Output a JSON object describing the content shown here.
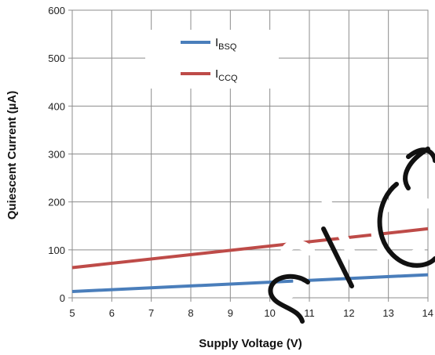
{
  "chart_data": {
    "type": "line",
    "title": "",
    "xlabel": "Supply Voltage (V)",
    "ylabel": "Quiescent Current (µA)",
    "xlim": [
      5,
      14
    ],
    "ylim": [
      0,
      600
    ],
    "x_ticks": [
      "5",
      "6",
      "7",
      "8",
      "9",
      "10",
      "11",
      "12",
      "13",
      "14"
    ],
    "y_ticks": [
      "0",
      "100",
      "200",
      "300",
      "400",
      "500",
      "600"
    ],
    "grid": true,
    "legend_position": "top-center",
    "series": [
      {
        "name_main": "I",
        "name_sub": "BSQ",
        "color": "#4a7ebb",
        "x": [
          5,
          14
        ],
        "y": [
          13,
          48
        ]
      },
      {
        "name_main": "I",
        "name_sub": "CCQ",
        "color": "#be4b48",
        "x": [
          5,
          14
        ],
        "y": [
          63,
          144
        ]
      }
    ],
    "watermark": "SLCO"
  }
}
